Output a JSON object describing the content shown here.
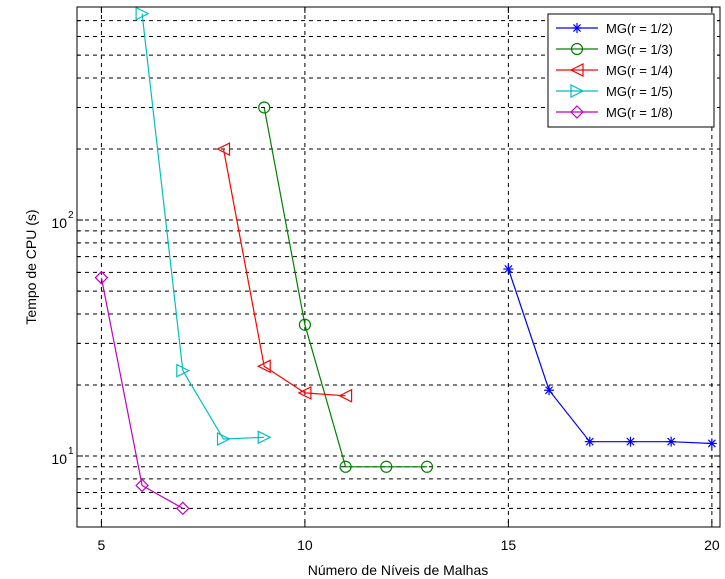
{
  "chart_data": {
    "type": "line",
    "title": "",
    "xlabel": "Número de Níveis de Malhas",
    "ylabel": "Tempo de CPU (s)",
    "xlim": [
      4.4,
      20.2
    ],
    "ylim": [
      5,
      800
    ],
    "yscale": "log",
    "grid": true,
    "legend_position": "top-right",
    "x_ticks": [
      {
        "value": 5,
        "label": "5"
      },
      {
        "value": 10,
        "label": "10"
      },
      {
        "value": 15,
        "label": "15"
      },
      {
        "value": 20,
        "label": "20"
      }
    ],
    "y_ticks": [
      {
        "value": 10,
        "base": "10",
        "exp": "1"
      },
      {
        "value": 100,
        "base": "10",
        "exp": "2"
      }
    ],
    "series": [
      {
        "name": "MG(r = 1/2)",
        "color": "#0000ff",
        "marker": "star",
        "x": [
          15,
          16,
          17,
          18,
          19,
          20
        ],
        "y": [
          62,
          19,
          11.5,
          11.5,
          11.5,
          11.3
        ]
      },
      {
        "name": "MG(r = 1/3)",
        "color": "#008000",
        "marker": "circle",
        "x": [
          9,
          10,
          11,
          12,
          13
        ],
        "y": [
          300,
          36,
          9,
          9,
          9
        ]
      },
      {
        "name": "MG(r = 1/4)",
        "color": "#ff0000",
        "marker": "triangle-left",
        "x": [
          8,
          9,
          10,
          11
        ],
        "y": [
          200,
          24,
          18.5,
          18
        ]
      },
      {
        "name": "MG(r = 1/5)",
        "color": "#00bfbf",
        "marker": "triangle-right",
        "x": [
          6,
          7,
          8,
          9
        ],
        "y": [
          750,
          23,
          11.8,
          12
        ]
      },
      {
        "name": "MG(r = 1/8)",
        "color": "#bf00bf",
        "marker": "diamond",
        "x": [
          5,
          6,
          7
        ],
        "y": [
          57,
          7.5,
          6
        ]
      }
    ]
  }
}
